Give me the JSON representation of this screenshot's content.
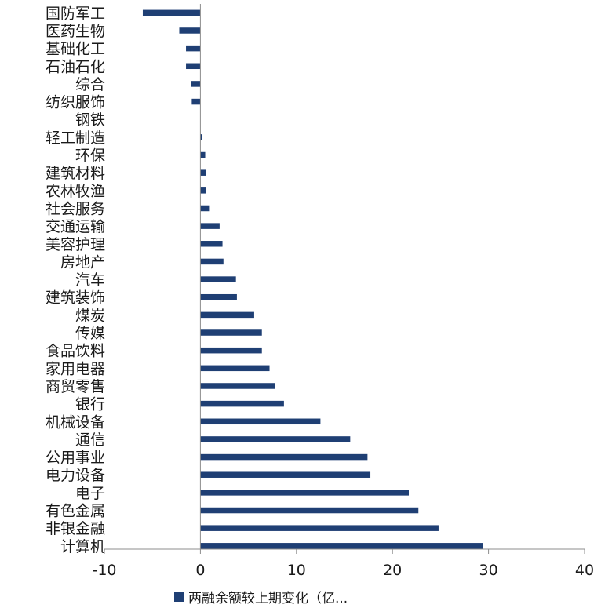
{
  "chart_data": {
    "type": "bar",
    "orientation": "horizontal",
    "categories": [
      "国防军工",
      "医药生物",
      "基础化工",
      "石油石化",
      "综合",
      "纺织服饰",
      "钢铁",
      "轻工制造",
      "环保",
      "建筑材料",
      "农林牧渔",
      "社会服务",
      "交通运输",
      "美容护理",
      "房地产",
      "汽车",
      "建筑装饰",
      "煤炭",
      "传媒",
      "食品饮料",
      "家用电器",
      "商贸零售",
      "银行",
      "机械设备",
      "通信",
      "公用事业",
      "电力设备",
      "电子",
      "有色金属",
      "非银金融",
      "计算机"
    ],
    "series": [
      {
        "name": "两融余额较上期变化（亿...",
        "values": [
          -6.0,
          -2.2,
          -1.5,
          -1.5,
          -1.0,
          -0.9,
          0.0,
          0.2,
          0.5,
          0.6,
          0.6,
          0.9,
          2.0,
          2.3,
          2.4,
          3.7,
          3.8,
          5.6,
          6.4,
          6.4,
          7.2,
          7.8,
          8.7,
          12.5,
          15.6,
          17.4,
          17.7,
          21.7,
          22.7,
          24.8,
          29.4
        ]
      }
    ],
    "xlim": [
      -10,
      40
    ],
    "xticks": [
      -10,
      0,
      10,
      20,
      30,
      40
    ],
    "xtick_labels": [
      "-10",
      "0",
      "10",
      "20",
      "30",
      "40"
    ],
    "grid": false,
    "legend_position": "bottom",
    "bar_color": "#1f3f74",
    "axis_color": "#8c8c8c"
  }
}
